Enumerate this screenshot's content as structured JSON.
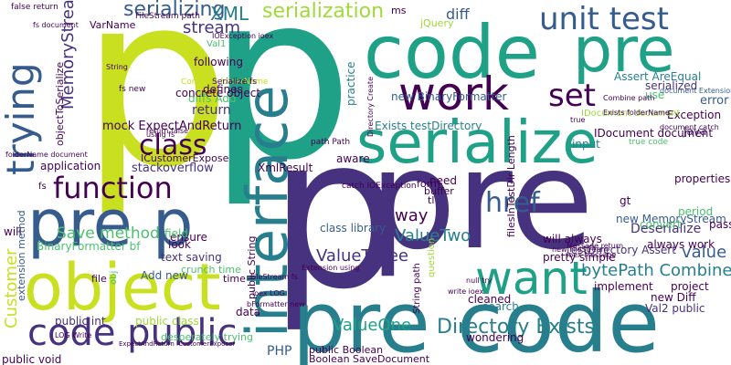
{
  "palette": {
    "c1": "#440154",
    "c2": "#46327e",
    "c3": "#365c8d",
    "c4": "#277f8e",
    "c5": "#1fa187",
    "c6": "#4ac16d",
    "c7": "#a0da39",
    "c8": "#c8e020"
  },
  "words": [
    {
      "text": "p",
      "color": "#c8e020"
    },
    {
      "text": "p",
      "color": "#1fa187"
    },
    {
      "text": "p",
      "color": "#46327e"
    },
    {
      "text": "pre",
      "color": "#46327e"
    },
    {
      "text": "code",
      "color": "#1fa187"
    },
    {
      "text": "pre",
      "color": "#1fa187"
    },
    {
      "text": "serialize",
      "color": "#1fa187"
    },
    {
      "text": "work",
      "color": "#440154"
    },
    {
      "text": "pre code",
      "color": "#277f8e"
    },
    {
      "text": "pre p",
      "color": "#365c8d"
    },
    {
      "text": "object",
      "color": "#c8e020"
    },
    {
      "text": "interface",
      "color": "#277f8e"
    },
    {
      "text": "want",
      "color": "#1fa187"
    },
    {
      "text": "code public",
      "color": "#46327e"
    },
    {
      "text": "function",
      "color": "#440154"
    },
    {
      "text": "trying",
      "color": "#365c8d"
    },
    {
      "text": "unit test",
      "color": "#365c8d"
    },
    {
      "text": "class",
      "color": "#440154"
    },
    {
      "text": "set",
      "color": "#440154"
    },
    {
      "text": "href",
      "color": "#365c8d"
    },
    {
      "text": "serialization",
      "color": "#a0da39"
    },
    {
      "text": "serializing",
      "color": "#365c8d"
    },
    {
      "text": "XML",
      "color": "#277f8e"
    },
    {
      "text": "Directory Exists",
      "color": "#277f8e"
    },
    {
      "text": "stream",
      "color": "#46327e"
    },
    {
      "text": "MemoryStream",
      "color": "#46327e"
    },
    {
      "text": "Save method",
      "color": "#4ac16d"
    },
    {
      "text": "ValueThree",
      "color": "#46327e"
    },
    {
      "text": "ValueTwo",
      "color": "#277f8e"
    },
    {
      "text": "ValueOne",
      "color": "#1fa187"
    },
    {
      "text": "way",
      "color": "#440154"
    },
    {
      "text": "bytePath Combine",
      "color": "#277f8e"
    },
    {
      "text": "value",
      "color": "#365c8d"
    },
    {
      "text": "diff",
      "color": "#365c8d"
    },
    {
      "text": "Customer",
      "color": "#c8e020"
    },
    {
      "text": "stackoverflow",
      "color": "#46327e"
    },
    {
      "text": "mock ExpectAndReturn",
      "color": "#440154"
    },
    {
      "text": "return",
      "color": "#46327e"
    },
    {
      "text": "diffs Add",
      "color": "#4ac16d"
    },
    {
      "text": "following",
      "color": "#440154"
    },
    {
      "text": "Deserialize",
      "color": "#46327e"
    },
    {
      "text": "Exception",
      "color": "#440154"
    },
    {
      "text": "error",
      "color": "#365c8d"
    },
    {
      "text": "properties",
      "color": "#440154"
    },
    {
      "text": "Exists testDirectory",
      "color": "#277f8e"
    },
    {
      "text": "Assert AreEqual",
      "color": "#277f8e"
    },
    {
      "text": "testDirectory Assert",
      "color": "#46327e"
    },
    {
      "text": "new BinaryFormatter",
      "color": "#365c8d"
    },
    {
      "text": "BinaryFormatter bf",
      "color": "#4ac16d"
    },
    {
      "text": "public int",
      "color": "#46327e"
    },
    {
      "text": "public class",
      "color": "#a0da39"
    },
    {
      "text": "public void",
      "color": "#440154"
    },
    {
      "text": "Add new",
      "color": "#365c8d"
    },
    {
      "text": "XmlResult",
      "color": "#440154"
    },
    {
      "text": "PHP",
      "color": "#365c8d"
    },
    {
      "text": "new MemoryStream",
      "color": "#365c8d"
    },
    {
      "text": "new Diff",
      "color": "#440154"
    },
    {
      "text": "Val2 public",
      "color": "#46327e"
    },
    {
      "text": "implement",
      "color": "#440154"
    },
    {
      "text": "project",
      "color": "#440154"
    },
    {
      "text": "application",
      "color": "#440154"
    },
    {
      "text": "ensure",
      "color": "#440154"
    },
    {
      "text": "aware",
      "color": "#440154"
    },
    {
      "text": "look",
      "color": "#440154"
    },
    {
      "text": "field",
      "color": "#4ac16d"
    },
    {
      "text": "data",
      "color": "#440154"
    },
    {
      "text": "Java",
      "color": "#46327e"
    },
    {
      "text": "serialized",
      "color": "#46327e"
    },
    {
      "text": "concrete object",
      "color": "#440154"
    },
    {
      "text": "text saving",
      "color": "#46327e"
    },
    {
      "text": "input",
      "color": "#277f8e"
    },
    {
      "text": "gt",
      "color": "#440154"
    },
    {
      "text": "use",
      "color": "#4ac16d"
    },
    {
      "text": "need",
      "color": "#440154"
    },
    {
      "text": "practice",
      "color": "#277f8e"
    },
    {
      "text": "IDocument document",
      "color": "#440154"
    },
    {
      "text": "always work",
      "color": "#440154"
    },
    {
      "text": "will always",
      "color": "#440154"
    },
    {
      "text": "pretty simple",
      "color": "#440154"
    },
    {
      "text": "period",
      "color": "#4ac16d"
    },
    {
      "text": "convert",
      "color": "#4ac16d"
    },
    {
      "text": "pass",
      "color": "#440154"
    },
    {
      "text": "cleaned",
      "color": "#440154"
    },
    {
      "text": "search",
      "color": "#277f8e"
    },
    {
      "text": "wondering",
      "color": "#440154"
    },
    {
      "text": "class library",
      "color": "#365c8d"
    },
    {
      "text": "will",
      "color": "#440154"
    },
    {
      "text": "defines",
      "color": "#440154"
    },
    {
      "text": "String path",
      "color": "#440154"
    },
    {
      "text": "crunch time",
      "color": "#4ac16d"
    },
    {
      "text": "desperately trying",
      "color": "#4ac16d"
    },
    {
      "text": "Boolean SaveDocument",
      "color": "#440154"
    },
    {
      "text": "public Boolean",
      "color": "#440154"
    },
    {
      "text": "time",
      "color": "#440154"
    },
    {
      "text": "jQuery",
      "color": "#a0da39"
    },
    {
      "text": "IDocument document",
      "color": "#a0da39"
    },
    {
      "text": "ICustomerExpose",
      "color": "#440154"
    },
    {
      "text": "public String",
      "color": "#440154"
    },
    {
      "text": "question",
      "color": "#a0da39"
    },
    {
      "text": "VarName",
      "color": "#440154"
    },
    {
      "text": "objectToSerialize",
      "color": "#440154"
    },
    {
      "text": "filesInTestDir Length",
      "color": "#440154"
    },
    {
      "text": "Combine folderName",
      "color": "#c8e020"
    },
    {
      "text": "form",
      "color": "#440154"
    },
    {
      "text": "tl",
      "color": "#440154"
    },
    {
      "text": "buffer",
      "color": "#440154"
    },
    {
      "text": "extension method",
      "color": "#365c8d"
    },
    {
      "text": "ms",
      "color": "#440154"
    },
    {
      "text": "file",
      "color": "#440154"
    },
    {
      "text": "obj",
      "color": "#4ac16d"
    },
    {
      "text": "fs",
      "color": "#440154"
    },
    {
      "text": "true code",
      "color": "#4ac16d"
    },
    {
      "text": "document Extension",
      "color": "#365c8d"
    },
    {
      "text": "fs new",
      "color": "#440154"
    },
    {
      "text": "false return",
      "color": "#440154"
    },
    {
      "text": "FileStream path",
      "color": "#440154"
    },
    {
      "text": "Message return",
      "color": "#440154"
    },
    {
      "text": "ioex Message",
      "color": "#440154"
    },
    {
      "text": "IOException ioex",
      "color": "#440154"
    },
    {
      "text": "Serialize fs",
      "color": "#440154"
    },
    {
      "text": "using fs",
      "color": "#440154"
    },
    {
      "text": "Val1",
      "color": "#4ac16d"
    },
    {
      "text": "path Path",
      "color": "#440154"
    },
    {
      "text": "catch IOException",
      "color": "#440154"
    },
    {
      "text": "new FileStream",
      "color": "#440154"
    },
    {
      "text": "FileStream fs",
      "color": "#440154"
    },
    {
      "text": "Extension using",
      "color": "#440154"
    },
    {
      "text": "Combine path",
      "color": "#440154"
    },
    {
      "text": "Exists folderName",
      "color": "#440154"
    },
    {
      "text": "document catch",
      "color": "#440154"
    },
    {
      "text": "return false",
      "color": "#440154"
    },
    {
      "text": "ioex LOG",
      "color": "#440154"
    },
    {
      "text": "bFormatter new",
      "color": "#440154"
    },
    {
      "text": "fs document",
      "color": "#440154"
    },
    {
      "text": "Directory Create",
      "color": "#440154"
    },
    {
      "text": "LOG Write",
      "color": "#440154"
    },
    {
      "text": "write ioex",
      "color": "#440154"
    },
    {
      "text": "null try",
      "color": "#440154"
    },
    {
      "text": "true",
      "color": "#440154"
    },
    {
      "text": "String",
      "color": "#440154"
    },
    {
      "text": "folderName document",
      "color": "#440154"
    },
    {
      "text": "ExpectAndReturn ICustomerExposer",
      "color": "#440154"
    }
  ]
}
